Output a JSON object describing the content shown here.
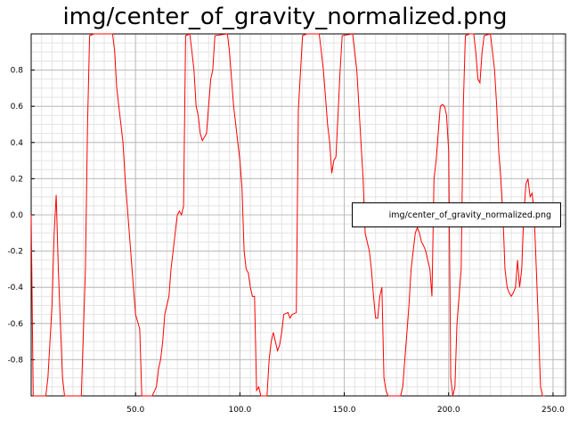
{
  "chart_data": {
    "type": "line",
    "title": "img/center_of_gravity_normalized.png",
    "xlabel": "",
    "ylabel": "",
    "xlim": [
      0,
      256
    ],
    "ylim": [
      -1,
      1
    ],
    "grid": true,
    "legend_position": "right",
    "x_ticks": [
      50,
      100,
      150,
      200,
      250
    ],
    "x_tick_labels": [
      "50.0",
      "100.0",
      "150.0",
      "200.0",
      "250.0"
    ],
    "y_ticks": [
      0.8,
      0.6,
      0.4,
      0.2,
      0.0,
      -0.2,
      -0.4,
      -0.6,
      -0.8
    ],
    "y_tick_labels": [
      "0.8",
      "0.6",
      "0.4",
      "0.2",
      "0.0",
      "-0.2",
      "-0.4",
      "-0.6",
      "-0.8"
    ],
    "series": [
      {
        "name": "img/center_of_gravity_normalized.png",
        "color": "#ff0000",
        "points": [
          [
            0,
            0.0
          ],
          [
            1,
            -1.0
          ],
          [
            7,
            -1.0
          ],
          [
            8,
            -0.9
          ],
          [
            10,
            -0.5
          ],
          [
            11,
            -0.1
          ],
          [
            12,
            0.11
          ],
          [
            13,
            -0.3
          ],
          [
            14,
            -0.6
          ],
          [
            15,
            -0.9
          ],
          [
            16,
            -1.0
          ],
          [
            24,
            -1.0
          ],
          [
            26,
            -0.3
          ],
          [
            27,
            0.5
          ],
          [
            28,
            0.99
          ],
          [
            30,
            1.0
          ],
          [
            39,
            1.0
          ],
          [
            40,
            0.9
          ],
          [
            41,
            0.7
          ],
          [
            42,
            0.6
          ],
          [
            44,
            0.4
          ],
          [
            45,
            0.2
          ],
          [
            47,
            -0.1
          ],
          [
            49,
            -0.4
          ],
          [
            50,
            -0.55
          ],
          [
            52,
            -0.63
          ],
          [
            53,
            -1.0
          ],
          [
            58,
            -1.0
          ],
          [
            60,
            -0.95
          ],
          [
            61,
            -0.85
          ],
          [
            62,
            -0.8
          ],
          [
            63,
            -0.7
          ],
          [
            64,
            -0.55
          ],
          [
            66,
            -0.45
          ],
          [
            67,
            -0.3
          ],
          [
            68,
            -0.2
          ],
          [
            69,
            -0.1
          ],
          [
            70,
            0.0
          ],
          [
            71,
            0.02
          ],
          [
            72,
            0.0
          ],
          [
            73,
            0.05
          ],
          [
            74,
            0.99
          ],
          [
            76,
            1.0
          ],
          [
            77,
            0.9
          ],
          [
            78,
            0.8
          ],
          [
            79,
            0.6
          ],
          [
            80,
            0.55
          ],
          [
            81,
            0.45
          ],
          [
            82,
            0.41
          ],
          [
            84,
            0.45
          ],
          [
            85,
            0.6
          ],
          [
            86,
            0.75
          ],
          [
            87,
            0.8
          ],
          [
            88,
            0.99
          ],
          [
            94,
            1.0
          ],
          [
            95,
            0.9
          ],
          [
            96,
            0.75
          ],
          [
            97,
            0.6
          ],
          [
            98,
            0.5
          ],
          [
            99,
            0.4
          ],
          [
            100,
            0.3
          ],
          [
            101,
            0.15
          ],
          [
            102,
            -0.2
          ],
          [
            103,
            -0.3
          ],
          [
            104,
            -0.32
          ],
          [
            105,
            -0.4
          ],
          [
            106,
            -0.45
          ],
          [
            107,
            -0.45
          ],
          [
            108,
            -0.97
          ],
          [
            109,
            -0.95
          ],
          [
            110,
            -1.0
          ],
          [
            113,
            -1.0
          ],
          [
            114,
            -0.8
          ],
          [
            115,
            -0.7
          ],
          [
            116,
            -0.65
          ],
          [
            117,
            -0.7
          ],
          [
            118,
            -0.75
          ],
          [
            119,
            -0.72
          ],
          [
            120,
            -0.65
          ],
          [
            121,
            -0.55
          ],
          [
            123,
            -0.54
          ],
          [
            124,
            -0.57
          ],
          [
            125,
            -0.55
          ],
          [
            127,
            -0.54
          ],
          [
            128,
            0.58
          ],
          [
            130,
            0.99
          ],
          [
            132,
            1.0
          ],
          [
            138,
            1.0
          ],
          [
            139,
            0.9
          ],
          [
            140,
            0.8
          ],
          [
            141,
            0.65
          ],
          [
            142,
            0.5
          ],
          [
            143,
            0.4
          ],
          [
            144,
            0.23
          ],
          [
            145,
            0.3
          ],
          [
            146,
            0.32
          ],
          [
            147,
            0.55
          ],
          [
            148,
            0.8
          ],
          [
            149,
            0.99
          ],
          [
            154,
            1.0
          ],
          [
            155,
            0.9
          ],
          [
            156,
            0.8
          ],
          [
            157,
            0.6
          ],
          [
            158,
            0.4
          ],
          [
            159,
            0.2
          ],
          [
            160,
            -0.1
          ],
          [
            162,
            -0.2
          ],
          [
            163,
            -0.3
          ],
          [
            164,
            -0.45
          ],
          [
            165,
            -0.57
          ],
          [
            166,
            -0.57
          ],
          [
            167,
            -0.45
          ],
          [
            168,
            -0.4
          ],
          [
            169,
            -0.9
          ],
          [
            170,
            -0.97
          ],
          [
            171,
            -1.0
          ],
          [
            177,
            -1.0
          ],
          [
            178,
            -0.95
          ],
          [
            179,
            -0.8
          ],
          [
            180,
            -0.65
          ],
          [
            181,
            -0.5
          ],
          [
            182,
            -0.3
          ],
          [
            183,
            -0.2
          ],
          [
            184,
            -0.1
          ],
          [
            185,
            -0.07
          ],
          [
            186,
            -0.1
          ],
          [
            187,
            -0.15
          ],
          [
            188,
            -0.17
          ],
          [
            189,
            -0.2
          ],
          [
            190,
            -0.25
          ],
          [
            191,
            -0.3
          ],
          [
            192,
            -0.45
          ],
          [
            193,
            0.2
          ],
          [
            194,
            0.3
          ],
          [
            195,
            0.45
          ],
          [
            196,
            0.6
          ],
          [
            197,
            0.61
          ],
          [
            198,
            0.6
          ],
          [
            199,
            0.55
          ],
          [
            200,
            0.35
          ],
          [
            201,
            -0.9
          ],
          [
            202,
            -1.0
          ],
          [
            203,
            -0.95
          ],
          [
            204,
            -0.6
          ],
          [
            206,
            -0.3
          ],
          [
            207,
            0.6
          ],
          [
            208,
            0.99
          ],
          [
            210,
            1.0
          ],
          [
            212,
            1.0
          ],
          [
            213,
            0.9
          ],
          [
            214,
            0.75
          ],
          [
            215,
            0.73
          ],
          [
            216,
            0.9
          ],
          [
            217,
            0.99
          ],
          [
            220,
            1.0
          ],
          [
            221,
            0.9
          ],
          [
            222,
            0.8
          ],
          [
            223,
            0.6
          ],
          [
            224,
            0.35
          ],
          [
            225,
            0.2
          ],
          [
            226,
            0.0
          ],
          [
            227,
            -0.3
          ],
          [
            228,
            -0.4
          ],
          [
            229,
            -0.43
          ],
          [
            230,
            -0.45
          ],
          [
            231,
            -0.43
          ],
          [
            232,
            -0.4
          ],
          [
            233,
            -0.25
          ],
          [
            234,
            -0.4
          ],
          [
            235,
            -0.3
          ],
          [
            236,
            0.0
          ],
          [
            237,
            0.17
          ],
          [
            238,
            0.2
          ],
          [
            239,
            0.1
          ],
          [
            240,
            0.12
          ],
          [
            241,
            0.0
          ],
          [
            242,
            -0.3
          ],
          [
            243,
            -0.6
          ],
          [
            244,
            -0.95
          ],
          [
            245,
            -1.0
          ],
          [
            246,
            -1.0
          ]
        ]
      }
    ]
  }
}
